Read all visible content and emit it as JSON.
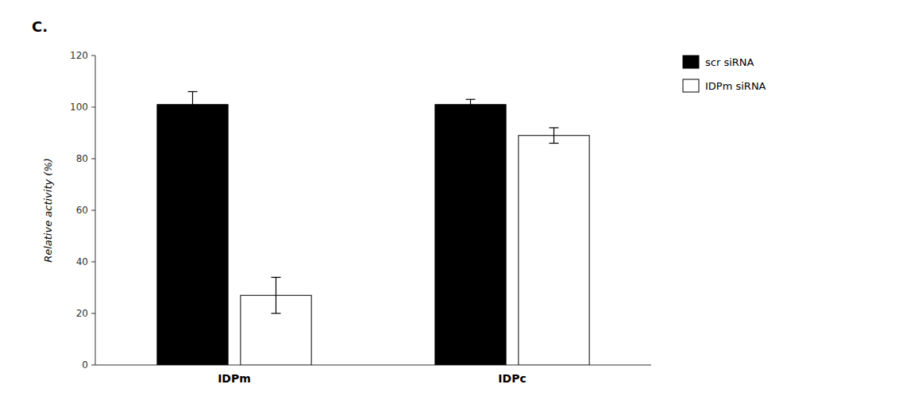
{
  "chart_data": {
    "type": "bar",
    "title": "C.",
    "categories": [
      "IDPm",
      "IDPc"
    ],
    "series": [
      {
        "name": "scr siRNA",
        "color": "#000000",
        "values": [
          101,
          101
        ],
        "errors": [
          5,
          2
        ]
      },
      {
        "name": "IDPm siRNA",
        "color": "#ffffff",
        "values": [
          27,
          89
        ],
        "errors": [
          7,
          3
        ]
      }
    ],
    "y_label": "Relative activity (%)",
    "ylim": [
      0,
      120
    ],
    "yticks": [
      0,
      20,
      40,
      60,
      80,
      100,
      120
    ],
    "grid": false,
    "legend": "upper right"
  }
}
